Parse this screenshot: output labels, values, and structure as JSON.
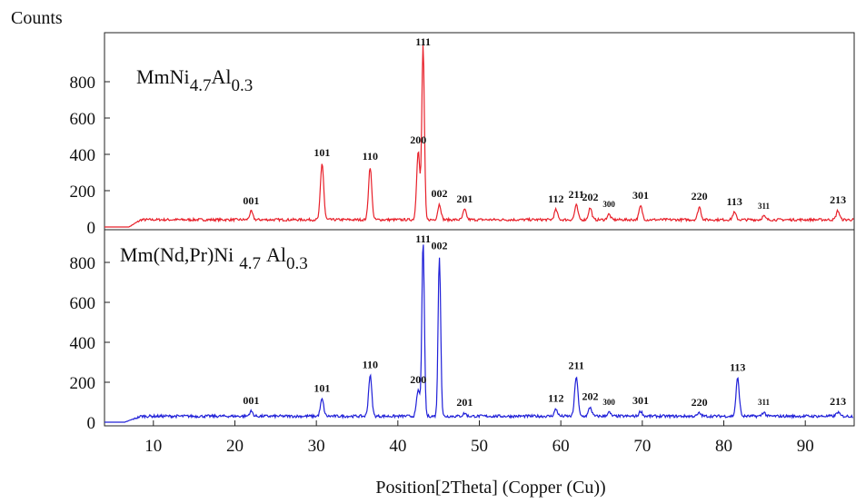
{
  "chart_data": {
    "type": "line",
    "ylabel": "Counts",
    "xlabel": "Position[2Theta] (Copper (Cu))",
    "x_ticks": [
      10,
      20,
      30,
      40,
      50,
      60,
      70,
      80,
      90
    ],
    "xlim": [
      4,
      96
    ],
    "grid": false,
    "panels": [
      {
        "name": "top",
        "sample_label": {
          "base": "MmNi",
          "sub1": "4.7",
          "mid": "Al",
          "sub2": "0.3"
        },
        "color": "#e8202a",
        "ylim": [
          0,
          1000
        ],
        "y_ticks": [
          0,
          200,
          400,
          600,
          800
        ],
        "baseline": 40,
        "peaks": [
          {
            "x": 22.0,
            "y": 85,
            "label": "001"
          },
          {
            "x": 30.7,
            "y": 350,
            "label": "101"
          },
          {
            "x": 36.6,
            "y": 330,
            "label": "110"
          },
          {
            "x": 42.5,
            "y": 420,
            "label": "200"
          },
          {
            "x": 43.1,
            "y": 1000,
            "label": "111"
          },
          {
            "x": 45.1,
            "y": 125,
            "label": "002"
          },
          {
            "x": 48.2,
            "y": 95,
            "label": "201"
          },
          {
            "x": 59.4,
            "y": 95,
            "label": "112"
          },
          {
            "x": 61.9,
            "y": 120,
            "label": "211"
          },
          {
            "x": 63.6,
            "y": 105,
            "label": "202"
          },
          {
            "x": 65.9,
            "y": 70,
            "label": "300"
          },
          {
            "x": 69.8,
            "y": 115,
            "label": "301"
          },
          {
            "x": 77.0,
            "y": 110,
            "label": "220"
          },
          {
            "x": 81.3,
            "y": 80,
            "label": "113"
          },
          {
            "x": 84.9,
            "y": 60,
            "label": "311"
          },
          {
            "x": 94.0,
            "y": 90,
            "label": "213"
          }
        ]
      },
      {
        "name": "bottom",
        "sample_label": {
          "base": "Mm(Nd,Pr)Ni",
          "sub1": "4.7",
          "mid": "Al",
          "sub2": "0.3"
        },
        "color": "#2020d8",
        "ylim": [
          0,
          900
        ],
        "y_ticks": [
          0,
          200,
          400,
          600,
          800
        ],
        "baseline": 30,
        "peaks": [
          {
            "x": 22.0,
            "y": 55,
            "label": "001"
          },
          {
            "x": 30.7,
            "y": 115,
            "label": "101"
          },
          {
            "x": 36.6,
            "y": 235,
            "label": "110"
          },
          {
            "x": 42.5,
            "y": 160,
            "label": "200"
          },
          {
            "x": 43.1,
            "y": 900,
            "label": "111"
          },
          {
            "x": 45.1,
            "y": 830,
            "label": "002"
          },
          {
            "x": 48.2,
            "y": 45,
            "label": "201"
          },
          {
            "x": 59.4,
            "y": 65,
            "label": "112"
          },
          {
            "x": 61.9,
            "y": 230,
            "label": "211"
          },
          {
            "x": 63.6,
            "y": 75,
            "label": "202"
          },
          {
            "x": 65.9,
            "y": 50,
            "label": "300"
          },
          {
            "x": 69.8,
            "y": 55,
            "label": "301"
          },
          {
            "x": 77.0,
            "y": 45,
            "label": "220"
          },
          {
            "x": 81.7,
            "y": 220,
            "label": "113"
          },
          {
            "x": 84.9,
            "y": 50,
            "label": "311"
          },
          {
            "x": 94.0,
            "y": 50,
            "label": "213"
          }
        ]
      }
    ]
  }
}
